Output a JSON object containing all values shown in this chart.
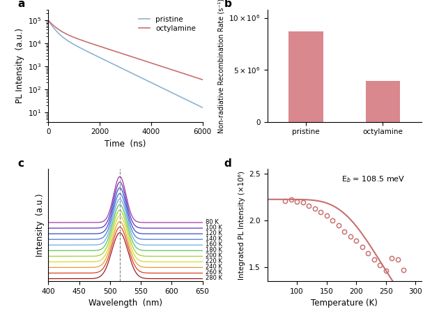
{
  "panel_a": {
    "title": "a",
    "xlabel": "Time  (ns)",
    "ylabel": "PL Intensity  (a.u.)",
    "xlim": [
      0,
      6000
    ],
    "pristine_color": "#8ab4d4",
    "octylamine_color": "#c87070",
    "legend_labels": [
      "pristine",
      "octylamine"
    ],
    "tau1_pristine": 200,
    "tau2_pristine": 800,
    "A1_pristine": 0.7,
    "A2_pristine": 0.3,
    "tau1_octy": 250,
    "tau2_octy": 1200,
    "A1_octy": 0.6,
    "A2_octy": 0.4
  },
  "panel_b": {
    "title": "b",
    "ylabel": "Non-radiative Recombination Rate (s⁻¹)",
    "categories": [
      "pristine",
      "octylamine"
    ],
    "values": [
      8700000,
      3900000
    ],
    "bar_color": "#d9888e",
    "ylim": [
      0,
      10800000
    ]
  },
  "panel_c": {
    "title": "c",
    "xlabel": "Wavelength  (nm)",
    "ylabel": "Intensity  (a.u.)",
    "xlim": [
      400,
      650
    ],
    "dashed_x": 516,
    "temperatures": [
      80,
      100,
      120,
      140,
      160,
      180,
      200,
      220,
      240,
      260,
      280
    ],
    "colors": [
      "#9b2fa0",
      "#5828b5",
      "#2845c5",
      "#3a70d8",
      "#62a8e8",
      "#58be58",
      "#96d028",
      "#d0dc18",
      "#e89828",
      "#d83818",
      "#981018"
    ],
    "peak_nm": 516,
    "sigma": 10
  },
  "panel_d": {
    "title": "d",
    "xlabel": "Temperature (K)",
    "ylabel": "Integrated PL Intensity (×10⁶)",
    "xlim": [
      50,
      310
    ],
    "ylim": [
      1.35,
      2.55
    ],
    "annotation": "E$_b$ = 108.5 meV",
    "data_color": "#c87070",
    "fit_color": "#c87070",
    "temps": [
      80,
      90,
      100,
      110,
      120,
      130,
      140,
      150,
      160,
      170,
      180,
      190,
      200,
      210,
      220,
      230,
      240,
      250,
      260,
      270,
      280
    ],
    "pl_values": [
      2.21,
      2.22,
      2.2,
      2.19,
      2.16,
      2.13,
      2.09,
      2.05,
      2.0,
      1.95,
      1.88,
      1.83,
      1.78,
      1.72,
      1.65,
      1.58,
      1.52,
      1.46,
      1.6,
      1.58,
      1.47
    ]
  },
  "background_color": "#ffffff",
  "label_fontsize": 8.5,
  "tick_fontsize": 7.5,
  "panel_label_fontsize": 11
}
